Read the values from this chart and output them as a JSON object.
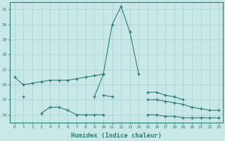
{
  "x_values": [
    0,
    1,
    2,
    3,
    4,
    5,
    6,
    7,
    8,
    9,
    10,
    11,
    12,
    13,
    14,
    15,
    16,
    17,
    18,
    19,
    20,
    21,
    22,
    23
  ],
  "lines": [
    [
      16.5,
      16.0,
      16.1,
      16.2,
      16.3,
      16.3,
      16.3,
      16.4,
      16.5,
      16.6,
      16.7,
      null,
      null,
      null,
      null,
      15.5,
      15.5,
      15.3,
      15.2,
      15.0,
      null,
      null,
      null,
      null
    ],
    [
      null,
      15.2,
      null,
      null,
      null,
      null,
      null,
      null,
      null,
      null,
      15.3,
      15.2,
      null,
      null,
      null,
      15.0,
      15.0,
      14.9,
      14.8,
      14.7,
      14.5,
      14.4,
      14.3,
      14.3
    ],
    [
      null,
      null,
      null,
      14.1,
      14.5,
      14.5,
      14.3,
      14.0,
      14.0,
      14.0,
      14.0,
      null,
      null,
      null,
      null,
      14.0,
      14.0,
      13.9,
      13.9,
      13.8,
      13.8,
      13.8,
      13.8,
      13.8
    ],
    [
      null,
      null,
      null,
      null,
      null,
      null,
      null,
      null,
      null,
      15.2,
      16.7,
      20.0,
      21.2,
      19.5,
      16.7,
      null,
      null,
      null,
      null,
      null,
      null,
      null,
      null,
      null
    ]
  ],
  "xlabel": "Humidex (Indice chaleur)",
  "xlim": [
    -0.5,
    23.5
  ],
  "ylim": [
    13.5,
    21.5
  ],
  "yticks": [
    14,
    15,
    16,
    17,
    18,
    19,
    20,
    21
  ],
  "xticks": [
    0,
    1,
    2,
    3,
    4,
    5,
    6,
    7,
    8,
    9,
    10,
    11,
    12,
    13,
    14,
    15,
    16,
    17,
    18,
    19,
    20,
    21,
    22,
    23
  ],
  "line_color": "#2e7d70",
  "bg_color": "#c8e8e8",
  "grid_color": "#a8d0d0",
  "fig_bg": "#c8e8e8"
}
